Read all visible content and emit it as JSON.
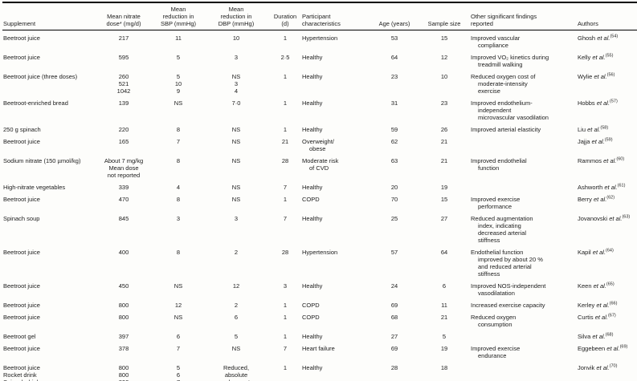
{
  "colors": {
    "background": "#fdfdfb",
    "text": "#1c1c1c",
    "rule": "#000000"
  },
  "table": {
    "columns": [
      {
        "key": "supplement",
        "label_lines": [
          "Supplement"
        ],
        "align": "l"
      },
      {
        "key": "dose",
        "label_lines": [
          "Mean nitrate",
          "dose* (mg/d)"
        ],
        "align": "c"
      },
      {
        "key": "sbp",
        "label_lines": [
          "Mean",
          "reduction in",
          "SBP (mmHg)"
        ],
        "align": "c"
      },
      {
        "key": "dbp",
        "label_lines": [
          "Mean",
          "reduction in",
          "DBP (mmHg)"
        ],
        "align": "c"
      },
      {
        "key": "duration",
        "label_lines": [
          "Duration",
          "(d)"
        ],
        "align": "c"
      },
      {
        "key": "participants",
        "label_lines": [
          "Participant",
          "characteristics"
        ],
        "align": "l",
        "hang": true
      },
      {
        "key": "age",
        "label_lines": [
          "Age (years)"
        ],
        "align": "c"
      },
      {
        "key": "sample",
        "label_lines": [
          "Sample size"
        ],
        "align": "c"
      },
      {
        "key": "findings",
        "label_lines": [
          "Other significant findings",
          "reported"
        ],
        "align": "l",
        "hang": true
      },
      {
        "key": "authors",
        "label_lines": [
          "Authors"
        ],
        "align": "l"
      }
    ],
    "rows": [
      {
        "supplement": "Beetroot juice",
        "dose": "217",
        "sbp": "11",
        "dbp": "10",
        "duration": "1",
        "participants": "Hypertension",
        "age": "53",
        "sample": "15",
        "findings": [
          "Improved vascular",
          "compliance"
        ],
        "authors": {
          "name": "Ghosh",
          "etal": "et al.",
          "ref": "(54)"
        }
      },
      {
        "supplement": "Beetroot juice",
        "dose": "595",
        "sbp": "5",
        "dbp": "3",
        "duration": "2·5",
        "participants": "Healthy",
        "age": "64",
        "sample": "12",
        "findings": [
          "Improved VO₂ kinetics during",
          "treadmill walking"
        ],
        "authors": {
          "name": "Kelly",
          "etal": "et al.",
          "ref": "(55)"
        }
      },
      {
        "supplement": "Beetroot juice (three doses)",
        "dose": [
          "260",
          "521",
          "1042"
        ],
        "sbp": [
          "5",
          "10",
          "9"
        ],
        "dbp": [
          "NS",
          "3",
          "4"
        ],
        "duration": "1",
        "participants": "Healthy",
        "age": "23",
        "sample": "10",
        "findings": [
          "Reduced oxygen cost of",
          "moderate-intensity",
          "exercise"
        ],
        "authors": {
          "name": "Wylie",
          "etal": "et al.",
          "ref": "(56)"
        }
      },
      {
        "supplement": "Beetroot-enriched bread",
        "dose": "139",
        "sbp": "NS",
        "dbp": "7·0",
        "duration": "1",
        "participants": "Healthy",
        "age": "31",
        "sample": "23",
        "findings": [
          "Improved endothelium-",
          "independent",
          "microvascular vasodilation"
        ],
        "authors": {
          "name": "Hobbs",
          "etal": "et al.",
          "ref": "(57)"
        }
      },
      {
        "supplement": "250 g spinach",
        "dose": "220",
        "sbp": "8",
        "dbp": "NS",
        "duration": "1",
        "participants": "Healthy",
        "age": "59",
        "sample": "26",
        "findings": [
          "Improved arterial elasticity"
        ],
        "authors": {
          "name": "Liu",
          "etal": "et al.",
          "ref": "(58)"
        }
      },
      {
        "supplement": "Beetroot juice",
        "dose": "165",
        "sbp": "7",
        "dbp": "NS",
        "duration": "21",
        "participants": [
          "Overweight/",
          "obese"
        ],
        "age": "62",
        "sample": "21",
        "findings": [],
        "authors": {
          "name": "Jajja",
          "etal": "et al.",
          "ref": "(59)"
        }
      },
      {
        "supplement": "Sodium nitrate (150 µmol/kg)",
        "dose": [
          "About 7 mg/kg",
          "Mean dose",
          "not reported"
        ],
        "sbp": "8",
        "dbp": "NS",
        "duration": "28",
        "participants": [
          "Moderate risk",
          "of CVD"
        ],
        "age": "63",
        "sample": "21",
        "findings": [
          "Improved endothelial",
          "function"
        ],
        "authors": {
          "name": "Rammos",
          "etal": "et al.",
          "ref": "(60)"
        }
      },
      {
        "supplement": "High-nitrate vegetables",
        "dose": "339",
        "sbp": "4",
        "dbp": "NS",
        "duration": "7",
        "participants": "Healthy",
        "age": "20",
        "sample": "19",
        "findings": [],
        "authors": {
          "name": "Ashworth",
          "etal": "et al.",
          "ref": "(61)"
        }
      },
      {
        "supplement": "Beetroot juice",
        "dose": "470",
        "sbp": "8",
        "dbp": "NS",
        "duration": "1",
        "participants": "COPD",
        "age": "70",
        "sample": "15",
        "findings": [
          "Improved exercise",
          "performance"
        ],
        "authors": {
          "name": "Berry",
          "etal": "et al.",
          "ref": "(62)"
        }
      },
      {
        "supplement": "Spinach soup",
        "dose": "845",
        "sbp": "3",
        "dbp": "3",
        "duration": "7",
        "participants": "Healthy",
        "age": "25",
        "sample": "27",
        "findings": [
          "Reduced augmentation",
          "index, indicating",
          "decreased arterial",
          "stiffness"
        ],
        "authors": {
          "name": "Jovanovski",
          "etal": "et al.",
          "ref": "(63)"
        }
      },
      {
        "supplement": "Beetroot juice",
        "dose": "400",
        "sbp": "8",
        "dbp": "2",
        "duration": "28",
        "participants": "Hypertension",
        "age": "57",
        "sample": "64",
        "findings": [
          "Endothelial function",
          "improved by about 20 %",
          "and reduced arterial",
          "stiffness"
        ],
        "authors": {
          "name": "Kapil",
          "etal": "et al.",
          "ref": "(64)"
        }
      },
      {
        "supplement": "Beetroot juice",
        "dose": "450",
        "sbp": "NS",
        "dbp": "12",
        "duration": "3",
        "participants": "Healthy",
        "age": "24",
        "sample": "6",
        "findings": [
          "Improved NOS-independent",
          "vasodilatation"
        ],
        "authors": {
          "name": "Keen",
          "etal": "et al.",
          "ref": "(65)"
        }
      },
      {
        "supplement": "Beetroot juice",
        "dose": "800",
        "sbp": "12",
        "dbp": "2",
        "duration": "1",
        "participants": "COPD",
        "age": "69",
        "sample": "11",
        "findings": [
          "Increased exercise capacity"
        ],
        "authors": {
          "name": "Kerley",
          "etal": "et al.",
          "ref": "(66)"
        }
      },
      {
        "supplement": "Beetroot juice",
        "dose": "800",
        "sbp": "NS",
        "dbp": "6",
        "duration": "1",
        "participants": "COPD",
        "age": "68",
        "sample": "21",
        "findings": [
          "Reduced oxygen",
          "consumption"
        ],
        "authors": {
          "name": "Curtis",
          "etal": "et al.",
          "ref": "(67)"
        }
      },
      {
        "supplement": "Beetroot gel",
        "dose": "397",
        "sbp": "6",
        "dbp": "5",
        "duration": "1",
        "participants": "Healthy",
        "age": "27",
        "sample": "5",
        "findings": [],
        "authors": {
          "name": "Silva",
          "etal": "et al.",
          "ref": "(68)"
        }
      },
      {
        "supplement": "Beetroot juice",
        "dose": "378",
        "sbp": "7",
        "dbp": "NS",
        "duration": "7",
        "participants": "Heart failure",
        "age": "69",
        "sample": "19",
        "findings": [
          "Improved exercise",
          "endurance"
        ],
        "authors": {
          "name": "Eggebeen",
          "etal": "et al.",
          "ref": "(69)"
        }
      },
      {
        "supplement": [
          "Beetroot juice",
          "Rocket drink",
          "Spinach drink"
        ],
        "dose": [
          "800",
          "800",
          "800"
        ],
        "sbp": [
          "5",
          "6",
          "7"
        ],
        "dbp": [
          "Reduced,",
          "absolute",
          "values not",
          "reported"
        ],
        "duration": "1",
        "participants": "Healthy",
        "age": "28",
        "sample": "18",
        "findings": [],
        "authors": {
          "name": "Jonvik",
          "etal": "et al.",
          "ref": "(70)"
        }
      }
    ]
  }
}
